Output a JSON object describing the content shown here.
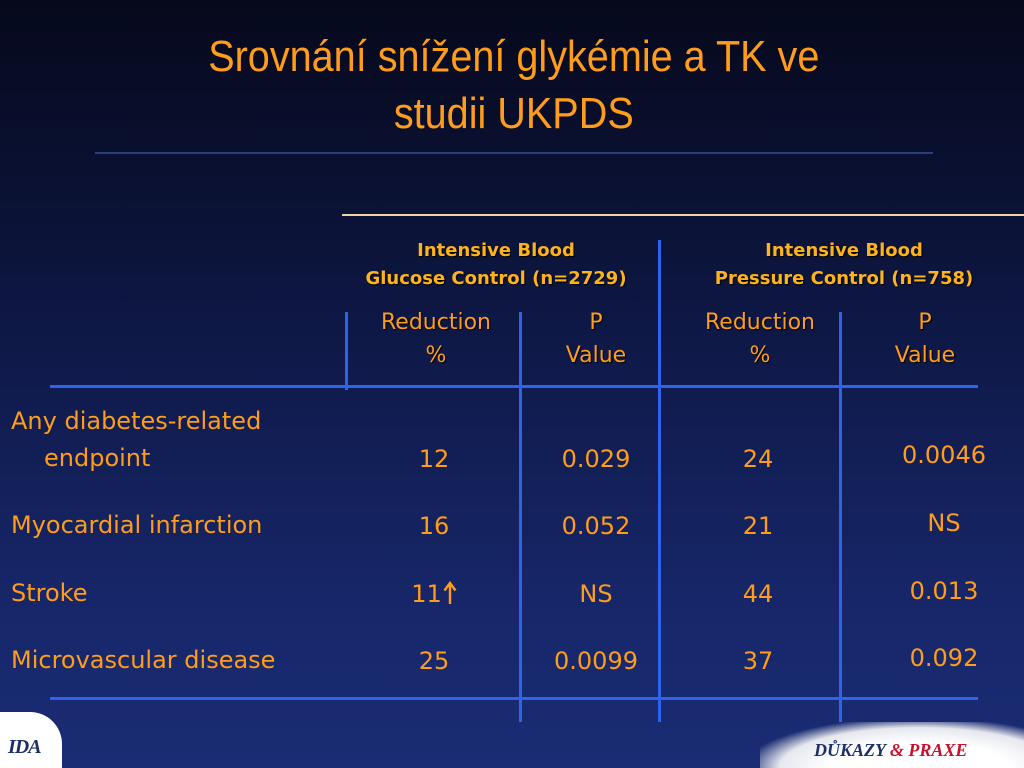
{
  "slide": {
    "title_line1": "Srovnání snížení glykémie a TK ve",
    "title_line2": "studii UKPDS"
  },
  "groups": [
    {
      "line1": "Intensive Blood",
      "line2": "Glucose Control (n=2729)"
    },
    {
      "line1": "Intensive Blood",
      "line2": "Pressure Control (n=758)"
    }
  ],
  "columns": [
    {
      "line1": "Reduction",
      "line2": "%"
    },
    {
      "line1": "P",
      "line2": "Value"
    },
    {
      "line1": "Reduction",
      "line2": "%"
    },
    {
      "line1": "P",
      "line2": "Value"
    }
  ],
  "rows": [
    {
      "label_line1": "Any diabetes-related",
      "label_line2": "endpoint",
      "values": [
        "12",
        "0.029",
        "24",
        "0.0046"
      ]
    },
    {
      "label_line1": "Myocardial infarction",
      "values": [
        "16",
        "0.052",
        "21",
        "NS"
      ]
    },
    {
      "label_line1": "Stroke",
      "values": [
        "11",
        "NS",
        "44",
        "0.013"
      ]
    },
    {
      "label_line1": "Microvascular disease",
      "values": [
        "25",
        "0.0099",
        "37",
        "0.092"
      ]
    }
  ],
  "icons": {
    "stroke_increase": "up-arrow-icon"
  },
  "logos": {
    "left_text": "IDA",
    "right_word1": "DŮKAZY",
    "right_word2": "& PRAXE"
  },
  "colors": {
    "title": "#ff9d1a",
    "group_header": "#ffb31a",
    "table_lines": "#2e63ee",
    "background_top": "#06091c",
    "background_bottom": "#1a2c74"
  }
}
